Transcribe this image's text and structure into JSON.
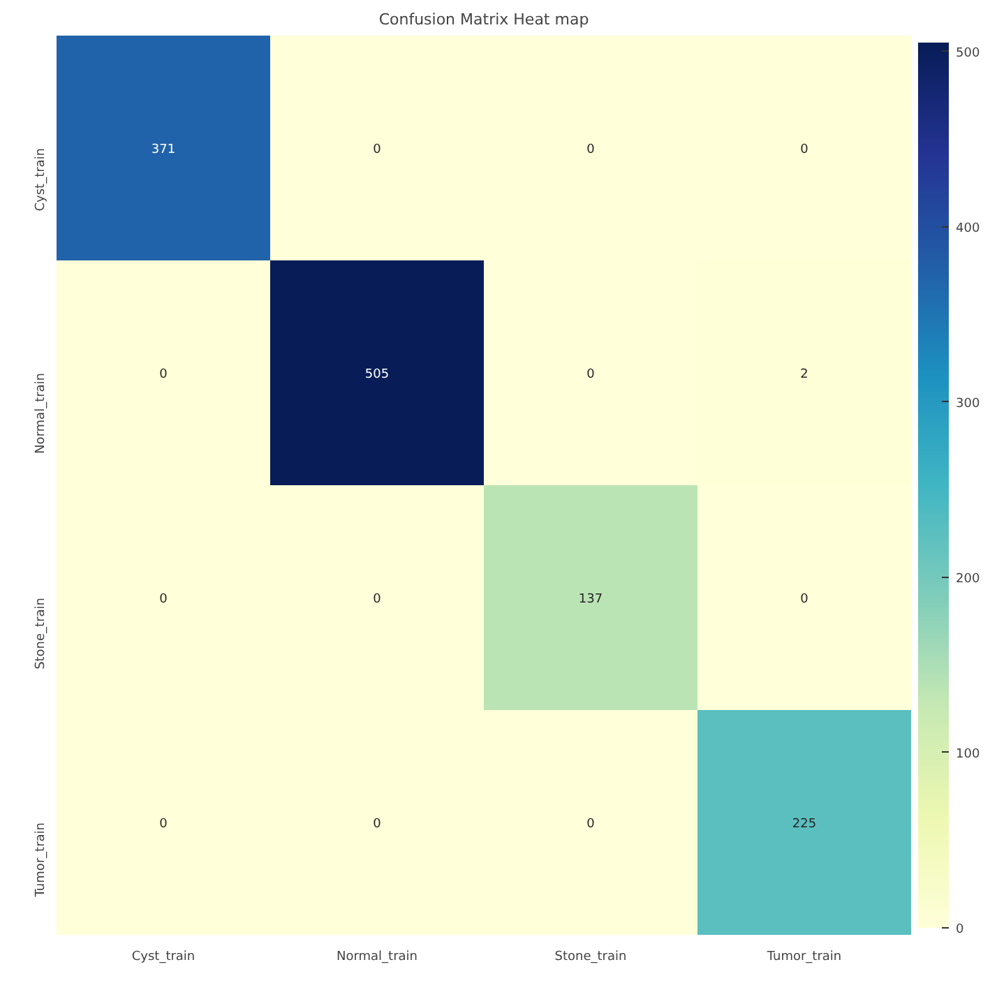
{
  "chart_data": {
    "type": "heatmap",
    "title": "Confusion Matrix Heat map",
    "categories": [
      "Cyst_train",
      "Normal_train",
      "Stone_train",
      "Tumor_train"
    ],
    "y_categories": [
      "Cyst_train",
      "Normal_train",
      "Stone_train",
      "Tumor_train"
    ],
    "cells": [
      [
        371,
        0,
        0,
        0
      ],
      [
        0,
        505,
        0,
        2
      ],
      [
        0,
        0,
        137,
        0
      ],
      [
        0,
        0,
        0,
        225
      ]
    ],
    "clim": [
      0,
      505
    ],
    "cticks": [
      0,
      100,
      200,
      300,
      400,
      500
    ],
    "data_labels": true
  }
}
